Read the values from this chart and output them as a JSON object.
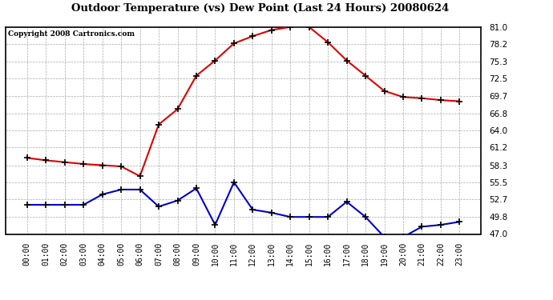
{
  "title": "Outdoor Temperature (vs) Dew Point (Last 24 Hours) 20080624",
  "copyright": "Copyright 2008 Cartronics.com",
  "hours": [
    "00:00",
    "01:00",
    "02:00",
    "03:00",
    "04:00",
    "05:00",
    "06:00",
    "07:00",
    "08:00",
    "09:00",
    "10:00",
    "11:00",
    "12:00",
    "13:00",
    "14:00",
    "15:00",
    "16:00",
    "17:00",
    "18:00",
    "19:00",
    "20:00",
    "21:00",
    "22:00",
    "23:00"
  ],
  "temp": [
    59.5,
    59.1,
    58.8,
    58.5,
    58.3,
    58.1,
    56.5,
    65.0,
    67.5,
    73.0,
    75.5,
    78.3,
    79.5,
    80.5,
    81.0,
    81.0,
    78.5,
    75.5,
    73.0,
    70.5,
    69.5,
    69.3,
    69.0,
    68.8
  ],
  "dewpoint": [
    51.8,
    51.8,
    51.8,
    51.8,
    53.5,
    54.3,
    54.3,
    51.5,
    52.5,
    54.5,
    48.5,
    55.5,
    51.0,
    50.5,
    49.8,
    49.8,
    49.8,
    52.3,
    49.8,
    46.5,
    46.5,
    48.2,
    48.5,
    49.0
  ],
  "temp_color": "#dd0000",
  "dew_color": "#0000cc",
  "bg_color": "#ffffff",
  "grid_color": "#aaaaaa",
  "yticks": [
    47.0,
    49.8,
    52.7,
    55.5,
    58.3,
    61.2,
    64.0,
    66.8,
    69.7,
    72.5,
    75.3,
    78.2,
    81.0
  ],
  "ymin": 47.0,
  "ymax": 81.0,
  "marker": "+",
  "marker_size": 6,
  "linewidth": 1.5
}
